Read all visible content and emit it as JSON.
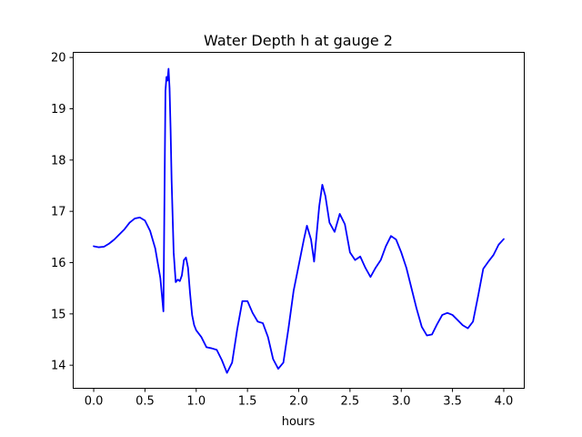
{
  "chart_data": {
    "type": "line",
    "title": "Water Depth h at gauge 2",
    "xlabel": "hours",
    "ylabel": "",
    "xlim": [
      -0.2,
      4.2
    ],
    "ylim": [
      13.55,
      20.1
    ],
    "xticks": [
      0.0,
      0.5,
      1.0,
      1.5,
      2.0,
      2.5,
      3.0,
      3.5,
      4.0
    ],
    "xtick_labels": [
      "0.0",
      "0.5",
      "1.0",
      "1.5",
      "2.0",
      "2.5",
      "3.0",
      "3.5",
      "4.0"
    ],
    "yticks": [
      14,
      15,
      16,
      17,
      18,
      19,
      20
    ],
    "ytick_labels": [
      "14",
      "15",
      "16",
      "17",
      "18",
      "19",
      "20"
    ],
    "grid": false,
    "series": [
      {
        "color": "#0000ff",
        "x": [
          0.0,
          0.05,
          0.1,
          0.15,
          0.2,
          0.25,
          0.3,
          0.35,
          0.4,
          0.45,
          0.5,
          0.55,
          0.6,
          0.65,
          0.68,
          0.7,
          0.71,
          0.72,
          0.73,
          0.74,
          0.75,
          0.76,
          0.78,
          0.8,
          0.82,
          0.84,
          0.86,
          0.88,
          0.9,
          0.92,
          0.94,
          0.96,
          0.98,
          1.0,
          1.05,
          1.1,
          1.15,
          1.2,
          1.25,
          1.3,
          1.35,
          1.4,
          1.45,
          1.5,
          1.55,
          1.6,
          1.65,
          1.7,
          1.75,
          1.8,
          1.85,
          1.9,
          1.95,
          2.0,
          2.05,
          2.08,
          2.12,
          2.15,
          2.2,
          2.23,
          2.26,
          2.3,
          2.35,
          2.4,
          2.45,
          2.5,
          2.55,
          2.6,
          2.65,
          2.7,
          2.75,
          2.8,
          2.85,
          2.9,
          2.95,
          3.0,
          3.05,
          3.1,
          3.15,
          3.2,
          3.25,
          3.3,
          3.35,
          3.4,
          3.45,
          3.5,
          3.55,
          3.6,
          3.65,
          3.7,
          3.75,
          3.8,
          3.85,
          3.9,
          3.95,
          4.0
        ],
        "y": [
          16.32,
          16.3,
          16.31,
          16.37,
          16.45,
          16.55,
          16.65,
          16.78,
          16.86,
          16.88,
          16.82,
          16.62,
          16.28,
          15.7,
          15.05,
          19.35,
          19.62,
          19.55,
          19.78,
          19.4,
          18.6,
          17.6,
          16.2,
          15.62,
          15.67,
          15.64,
          15.75,
          16.05,
          16.1,
          15.9,
          15.4,
          14.98,
          14.78,
          14.68,
          14.55,
          14.35,
          14.33,
          14.3,
          14.1,
          13.85,
          14.05,
          14.7,
          15.25,
          15.25,
          15.02,
          14.85,
          14.82,
          14.55,
          14.12,
          13.93,
          14.05,
          14.72,
          15.45,
          15.95,
          16.45,
          16.72,
          16.45,
          16.02,
          17.1,
          17.52,
          17.3,
          16.78,
          16.6,
          16.95,
          16.75,
          16.2,
          16.05,
          16.12,
          15.9,
          15.72,
          15.9,
          16.05,
          16.32,
          16.52,
          16.45,
          16.2,
          15.9,
          15.5,
          15.1,
          14.75,
          14.58,
          14.6,
          14.8,
          14.98,
          15.02,
          14.98,
          14.88,
          14.78,
          14.72,
          14.85,
          15.35,
          15.88,
          16.02,
          16.15,
          16.35,
          16.46
        ]
      }
    ]
  }
}
